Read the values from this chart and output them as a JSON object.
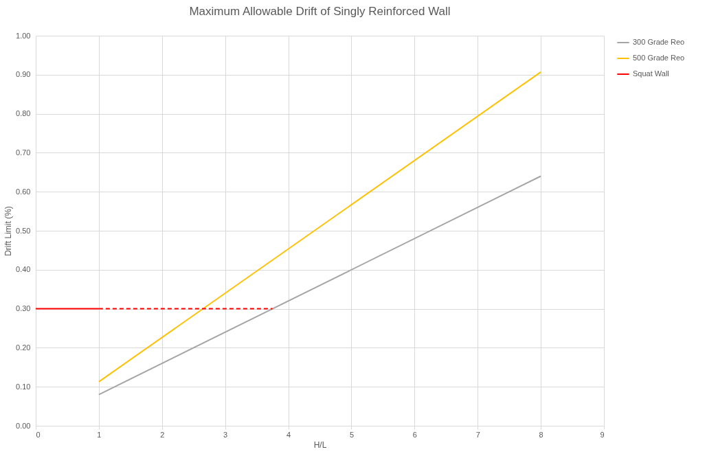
{
  "chart_data": {
    "type": "line",
    "title": "Maximum Allowable Drift of Singly Reinforced Wall",
    "xlabel": "H/L",
    "ylabel": "Drift Limit (%)",
    "xlim": [
      0,
      9
    ],
    "xticks": [
      0,
      1,
      2,
      3,
      4,
      5,
      6,
      7,
      8,
      9
    ],
    "ylim": [
      0,
      1
    ],
    "yticks": [
      {
        "value": 0,
        "label": "0.00"
      },
      {
        "value": 0.1,
        "label": "0.10"
      },
      {
        "value": 0.2,
        "label": "0.20"
      },
      {
        "value": 0.3,
        "label": "0.30"
      },
      {
        "value": 0.4,
        "label": "0.40"
      },
      {
        "value": 0.5,
        "label": "0.50"
      },
      {
        "value": 0.6,
        "label": "0.60"
      },
      {
        "value": 0.7,
        "label": "0.70"
      },
      {
        "value": 0.8,
        "label": "0.80"
      },
      {
        "value": 0.9,
        "label": "0.90"
      },
      {
        "value": 1,
        "label": "1.00"
      }
    ],
    "grid": true,
    "legend": "right",
    "series": [
      {
        "name": "300 Grade Reo",
        "color": "#a5a5a5",
        "x": [
          1,
          8
        ],
        "values": [
          0.08,
          0.64
        ]
      },
      {
        "name": "500 Grade Reo",
        "color": "#ffc000",
        "x": [
          1,
          8
        ],
        "values": [
          0.113,
          0.907
        ]
      },
      {
        "name": "Squat Wall",
        "color": "#ff0000",
        "x": [
          0,
          1
        ],
        "values": [
          0.3,
          0.3
        ]
      },
      {
        "color": "#ff0000",
        "x": [
          1,
          3.75
        ],
        "values": [
          0.3,
          0.3
        ],
        "line_style": "dashed"
      }
    ]
  }
}
